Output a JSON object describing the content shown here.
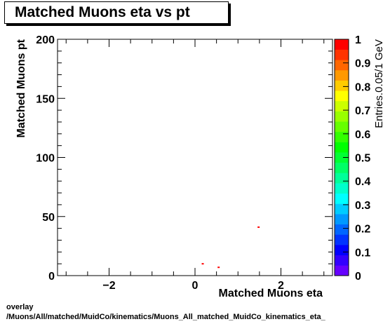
{
  "chart_data": {
    "type": "heatmap",
    "title": "Matched Muons eta vs pt",
    "xlabel": "Matched Muons eta",
    "ylabel": "Matched Muons pt",
    "zlabel": "Entries.0.05/1 GeV",
    "xlim": [
      -3.2,
      3.2
    ],
    "ylim": [
      0,
      200
    ],
    "zlim": [
      0,
      1
    ],
    "x_ticks": [
      -2,
      0,
      2
    ],
    "x_tick_labels": [
      "−2",
      "0",
      "2"
    ],
    "y_ticks": [
      0,
      50,
      100,
      150,
      200
    ],
    "z_ticks": [
      0,
      0.1,
      0.2,
      0.3,
      0.4,
      0.5,
      0.6,
      0.7,
      0.8,
      0.9,
      1
    ],
    "grid": false,
    "points": [
      {
        "x": 0.18,
        "y": 10,
        "z": 1
      },
      {
        "x": 0.55,
        "y": 7,
        "z": 1
      },
      {
        "x": 1.48,
        "y": 41,
        "z": 1
      }
    ],
    "palette": [
      "#6600ff",
      "#3300ff",
      "#0000ff",
      "#0033ff",
      "#0066ff",
      "#0099ff",
      "#00ccff",
      "#00ffff",
      "#00ffcc",
      "#00ff99",
      "#00ff66",
      "#00ff33",
      "#00ff00",
      "#33ff00",
      "#66ff00",
      "#99ff00",
      "#ccff00",
      "#ffff00",
      "#ffcc00",
      "#ff9900",
      "#ff6600",
      "#ff3300",
      "#ff0000"
    ]
  },
  "footer": {
    "line1": "overlay",
    "line2": "/Muons/All/matched/MuidCo/kinematics/Muons_All_matched_MuidCo_kinematics_eta_"
  }
}
